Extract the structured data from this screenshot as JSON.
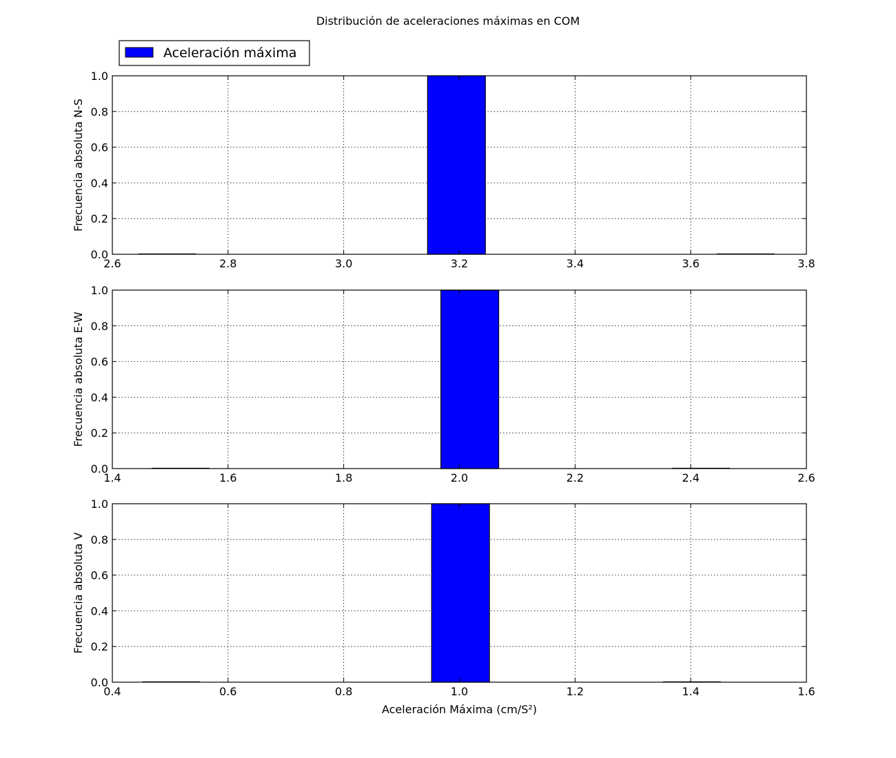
{
  "figure": {
    "title": "Distribución de aceleraciones máximas en COM",
    "legend": {
      "label": "Aceleración máxima",
      "color": "#0000ff",
      "placement": "top-left"
    },
    "bar_color": "#0000ff",
    "grid": true
  },
  "chart_data": [
    {
      "type": "bar",
      "ylabel": "Frecuencia absoluta N-S",
      "xlabel": "",
      "xlim": [
        2.6,
        3.8
      ],
      "ylim": [
        0.0,
        1.0
      ],
      "xticks": [
        "2.6",
        "2.8",
        "3.0",
        "3.2",
        "3.4",
        "3.6",
        "3.8"
      ],
      "yticks": [
        "0.0",
        "0.2",
        "0.4",
        "0.6",
        "0.8",
        "1.0"
      ],
      "series": [
        {
          "bins": [
            {
              "x0": 2.645,
              "x1": 2.745,
              "count": 0
            },
            {
              "x0": 3.145,
              "x1": 3.245,
              "count": 1
            },
            {
              "x0": 3.645,
              "x1": 3.745,
              "count": 0
            }
          ]
        }
      ]
    },
    {
      "type": "bar",
      "ylabel": "Frecuencia absoluta E-W",
      "xlabel": "",
      "xlim": [
        1.4,
        2.6
      ],
      "ylim": [
        0.0,
        1.0
      ],
      "xticks": [
        "1.4",
        "1.6",
        "1.8",
        "2.0",
        "2.2",
        "2.4",
        "2.6"
      ],
      "yticks": [
        "0.0",
        "0.2",
        "0.4",
        "0.6",
        "0.8",
        "1.0"
      ],
      "series": [
        {
          "bins": [
            {
              "x0": 1.468,
              "x1": 1.568,
              "count": 0
            },
            {
              "x0": 1.968,
              "x1": 2.068,
              "count": 1
            },
            {
              "x0": 2.368,
              "x1": 2.468,
              "count": 0
            }
          ]
        }
      ]
    },
    {
      "type": "bar",
      "ylabel": "Frecuencia absoluta V",
      "xlabel": "Aceleración Máxima (cm/S²)",
      "xlim": [
        0.4,
        1.6
      ],
      "ylim": [
        0.0,
        1.0
      ],
      "xticks": [
        "0.4",
        "0.6",
        "0.8",
        "1.0",
        "1.2",
        "1.4",
        "1.6"
      ],
      "yticks": [
        "0.0",
        "0.2",
        "0.4",
        "0.6",
        "0.8",
        "1.0"
      ],
      "series": [
        {
          "bins": [
            {
              "x0": 0.452,
              "x1": 0.552,
              "count": 0
            },
            {
              "x0": 0.952,
              "x1": 1.052,
              "count": 1
            },
            {
              "x0": 1.352,
              "x1": 1.452,
              "count": 0
            }
          ]
        }
      ]
    }
  ]
}
